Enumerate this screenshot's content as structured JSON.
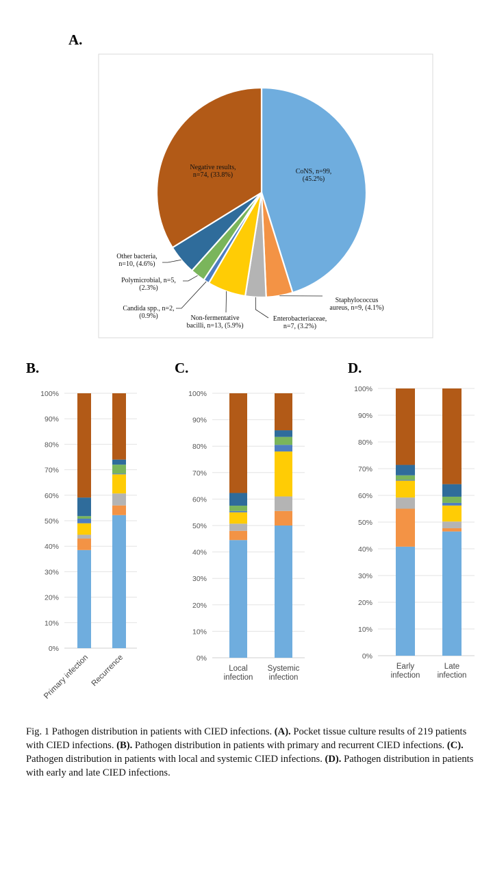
{
  "chart_data": [
    {
      "panel": "A.",
      "type": "pie",
      "categories": [
        "CoNS",
        "Staphylococcus aureus",
        "Enterobacteriaceae",
        "Non-fermentative bacilli",
        "Candida spp.",
        "Polymicrobial",
        "Other bacteria",
        "Negative results"
      ],
      "counts": [
        99,
        9,
        7,
        13,
        2,
        5,
        10,
        74
      ],
      "values": [
        45.2,
        4.1,
        3.2,
        5.9,
        0.9,
        2.3,
        4.6,
        33.8
      ],
      "labels": [
        [
          "CoNS, n=99,",
          "(45.2%)"
        ],
        [
          "Staphylococcus",
          "aureus, n=9, (4.1%)"
        ],
        [
          "Enterobacteriaceae,",
          "n=7, (3.2%)"
        ],
        [
          "Non-fermentative",
          "bacilli, n=13, (5.9%)"
        ],
        [
          "Candida spp., n=2,",
          "(0.9%)"
        ],
        [
          "Polymicrobial, n=5,",
          "(2.3%)"
        ],
        [
          "Other bacteria,",
          "n=10, (4.6%)"
        ],
        [
          "Negative results,",
          "n=74, (33.8%)"
        ]
      ],
      "colors": [
        "#6fadde",
        "#f39345",
        "#b4b4b4",
        "#ffcc05",
        "#4e7ec0",
        "#7ab55b",
        "#2f6c9b",
        "#b25a17"
      ]
    },
    {
      "panel": "B.",
      "type": "bar",
      "stacked": true,
      "categories": [
        "Primary infection",
        "Recurrence"
      ],
      "ylim": [
        0,
        100
      ],
      "yticks": [
        "0%",
        "10%",
        "20%",
        "30%",
        "40%",
        "50%",
        "60%",
        "70%",
        "80%",
        "90%",
        "100%"
      ],
      "series": [
        {
          "name": "CoNS",
          "values": [
            38.5,
            52.2
          ]
        },
        {
          "name": "Staphylococcus aureus",
          "values": [
            4.5,
            3.8
          ]
        },
        {
          "name": "Enterobacteriaceae",
          "values": [
            1.5,
            4.7
          ]
        },
        {
          "name": "Non-fermentative bacilli",
          "values": [
            4.5,
            7.5
          ]
        },
        {
          "name": "Candida spp.",
          "values": [
            1.8,
            0.3
          ]
        },
        {
          "name": "Polymicrobial",
          "values": [
            1.0,
            3.5
          ]
        },
        {
          "name": "Other bacteria",
          "values": [
            7.3,
            2.0
          ]
        },
        {
          "name": "Negative results",
          "values": [
            40.9,
            26.0
          ]
        }
      ]
    },
    {
      "panel": "C.",
      "type": "bar",
      "stacked": true,
      "categories": [
        "Local infection",
        "Systemic infection"
      ],
      "category_lines": [
        [
          "Local",
          "infection"
        ],
        [
          "Systemic",
          "infection"
        ]
      ],
      "ylim": [
        0,
        100
      ],
      "yticks": [
        "0%",
        "10%",
        "20%",
        "30%",
        "40%",
        "50%",
        "60%",
        "70%",
        "80%",
        "90%",
        "100%"
      ],
      "series": [
        {
          "name": "CoNS",
          "values": [
            44.5,
            50.0
          ]
        },
        {
          "name": "Staphylococcus aureus",
          "values": [
            3.5,
            5.5
          ]
        },
        {
          "name": "Enterobacteriaceae",
          "values": [
            2.7,
            5.5
          ]
        },
        {
          "name": "Non-fermentative bacilli",
          "values": [
            4.3,
            17.0
          ]
        },
        {
          "name": "Candida spp.",
          "values": [
            0.5,
            2.5
          ]
        },
        {
          "name": "Polymicrobial",
          "values": [
            2.0,
            3.0
          ]
        },
        {
          "name": "Other bacteria",
          "values": [
            4.8,
            2.5
          ]
        },
        {
          "name": "Negative results",
          "values": [
            37.7,
            14.0
          ]
        }
      ]
    },
    {
      "panel": "D.",
      "type": "bar",
      "stacked": true,
      "categories": [
        "Early infection",
        "Late infection"
      ],
      "category_lines": [
        [
          "Early",
          "infection"
        ],
        [
          "Late",
          "infection"
        ]
      ],
      "ylim": [
        0,
        100
      ],
      "yticks": [
        "0%",
        "10%",
        "20%",
        "30%",
        "40%",
        "50%",
        "60%",
        "70%",
        "80%",
        "90%",
        "100%"
      ],
      "series": [
        {
          "name": "CoNS",
          "values": [
            40.8,
            46.5
          ]
        },
        {
          "name": "Staphylococcus aureus",
          "values": [
            14.2,
            1.2
          ]
        },
        {
          "name": "Enterobacteriaceae",
          "values": [
            4.2,
            2.5
          ]
        },
        {
          "name": "Non-fermentative bacilli",
          "values": [
            6.3,
            6.0
          ]
        },
        {
          "name": "Candida spp.",
          "values": [
            0.3,
            1.0
          ]
        },
        {
          "name": "Polymicrobial",
          "values": [
            1.7,
            2.3
          ]
        },
        {
          "name": "Other bacteria",
          "values": [
            3.9,
            4.7
          ]
        },
        {
          "name": "Negative results",
          "values": [
            28.6,
            35.8
          ]
        }
      ]
    }
  ],
  "caption": {
    "intro": "Fig. 1  Pathogen distribution in patients with CIED infections. ",
    "parts": [
      {
        "b": "(A).",
        "t": " Pocket tissue culture results of 219 patients with CIED infections. "
      },
      {
        "b": "(B).",
        "t": " Pathogen distribution in patients with primary and recurrent CIED infections. "
      },
      {
        "b": "(C).",
        "t": " Pathogen distribution in patients with local and systemic CIED infections. "
      },
      {
        "b": "(D).",
        "t": " Pathogen distribution in patients with early and late CIED infections."
      }
    ]
  }
}
